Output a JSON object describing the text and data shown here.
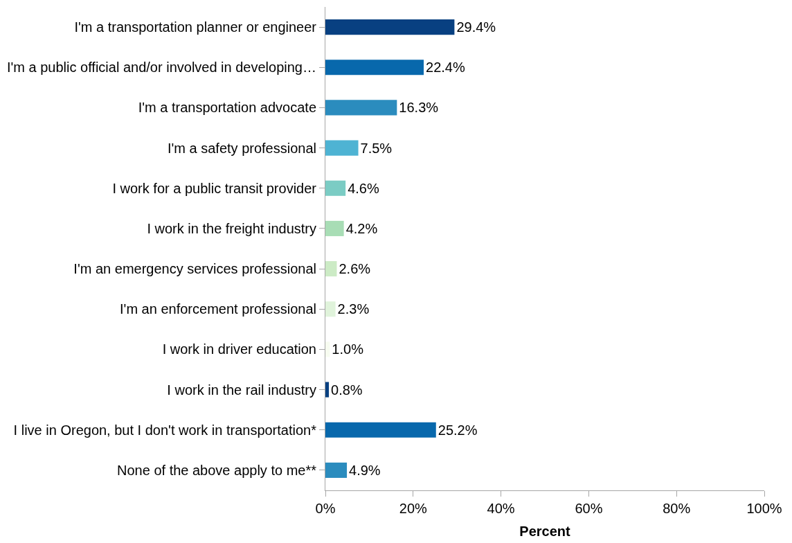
{
  "chart_data": {
    "type": "bar",
    "orientation": "horizontal",
    "xlabel": "Percent",
    "categories": [
      "I'm a transportation planner or engineer",
      "I'm a public official and/or involved in developing…",
      "I'm a transportation advocate",
      "I'm a safety professional",
      "I work for a public transit provider",
      "I work in the freight industry",
      "I'm an emergency services professional",
      "I'm an enforcement professional",
      "I work in driver education",
      "I work in the rail industry",
      "I live in Oregon, but I don't work in transportation*",
      "None of the above apply to me**"
    ],
    "values": [
      29.4,
      22.4,
      16.3,
      7.5,
      4.6,
      4.2,
      2.6,
      2.3,
      1.0,
      0.8,
      25.2,
      4.9
    ],
    "value_labels": [
      "29.4%",
      "22.4%",
      "16.3%",
      "7.5%",
      "4.6%",
      "4.2%",
      "2.6%",
      "2.3%",
      "1.0%",
      "0.8%",
      "25.2%",
      "4.9%"
    ],
    "colors": [
      "#084081",
      "#0868ac",
      "#2b8cbe",
      "#4eb3d3",
      "#7bccc4",
      "#a8ddb5",
      "#ccebc5",
      "#e0f3db",
      "#f7fcf0",
      "#084081",
      "#0868ac",
      "#2b8cbe"
    ],
    "xlim": [
      0,
      100
    ],
    "xticks": [
      {
        "value": 0,
        "label": "0%"
      },
      {
        "value": 20,
        "label": "20%"
      },
      {
        "value": 40,
        "label": "40%"
      },
      {
        "value": 60,
        "label": "60%"
      },
      {
        "value": 80,
        "label": "80%"
      },
      {
        "value": 100,
        "label": "100%"
      }
    ]
  }
}
